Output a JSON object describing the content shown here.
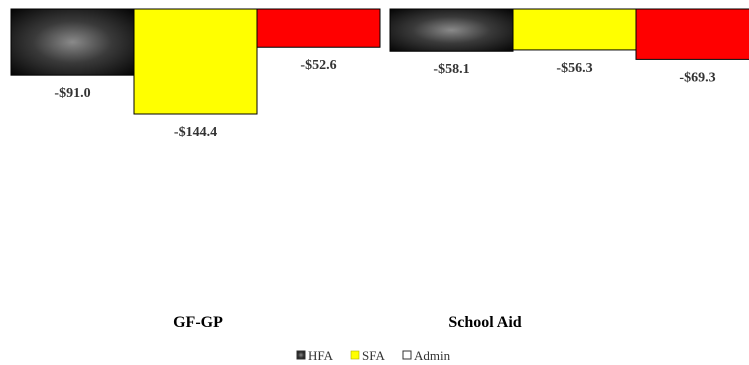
{
  "chart_data": {
    "type": "bar",
    "categories": [
      "GF-GP",
      "School Aid"
    ],
    "series": [
      {
        "name": "HFA",
        "values": [
          -91.0,
          -58.1
        ],
        "labels": [
          "-$91.0",
          "-$58.1"
        ],
        "color": "#2b2b2b"
      },
      {
        "name": "SFA",
        "values": [
          -144.4,
          -56.3
        ],
        "labels": [
          "-$144.4",
          "-$56.3"
        ],
        "color": "#ffff00"
      },
      {
        "name": "Admin",
        "values": [
          -52.6,
          -69.3
        ],
        "labels": [
          "-$52.6",
          "-$69.3"
        ],
        "color": "#ff0000"
      }
    ],
    "ylim": [
      -300,
      0
    ],
    "grid": false,
    "legend": "bottom-center"
  }
}
